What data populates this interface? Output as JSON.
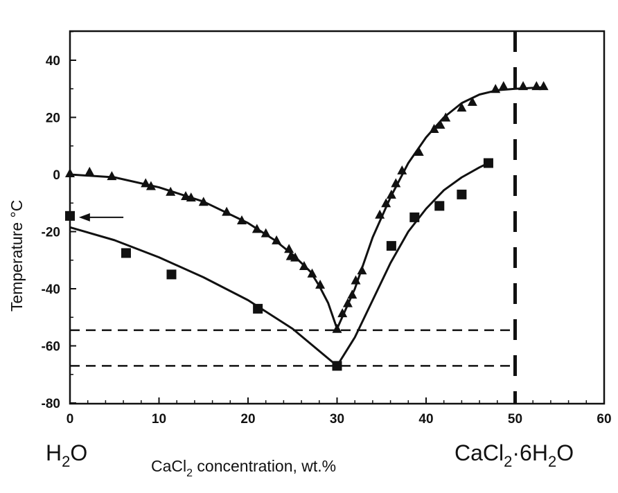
{
  "chart_data": {
    "type": "scatter",
    "title": "",
    "xlabel": {
      "main": "CaCl",
      "sub": "2",
      "rest": " concentration, wt.%"
    },
    "ylabel": "Temperature  °C",
    "xlim": [
      0,
      60
    ],
    "ylim": [
      -80,
      50
    ],
    "xticks": [
      "0",
      "10",
      "20",
      "30",
      "40",
      "50",
      "60"
    ],
    "yticks": [
      "-80",
      "-60",
      "-40",
      "-20",
      "0",
      "20",
      "40"
    ],
    "left_end_label": {
      "main": "H",
      "sub": "2",
      "rest": "O"
    },
    "right_end_label": {
      "main": "CaCl",
      "sub": "2",
      "mid": "·6H",
      "sub2": "2",
      "rest": "O"
    },
    "series": [
      {
        "name": "triangles",
        "marker": "triangle",
        "points": [
          [
            0,
            0.5
          ],
          [
            2.2,
            1
          ],
          [
            4.7,
            -0.5
          ],
          [
            8.5,
            -3
          ],
          [
            9.1,
            -4
          ],
          [
            11.3,
            -6
          ],
          [
            13,
            -7.5
          ],
          [
            13.6,
            -8
          ],
          [
            15,
            -9.5
          ],
          [
            17.6,
            -13
          ],
          [
            19.3,
            -16
          ],
          [
            21,
            -19
          ],
          [
            22,
            -20.5
          ],
          [
            23.2,
            -23
          ],
          [
            24.6,
            -26
          ],
          [
            24.8,
            -28.5
          ],
          [
            25.3,
            -29
          ],
          [
            26.3,
            -32
          ],
          [
            27.2,
            -34.6
          ],
          [
            28.1,
            -38.5
          ],
          [
            30,
            -54
          ],
          [
            30.6,
            -48.5
          ],
          [
            31.2,
            -45
          ],
          [
            31.7,
            -42
          ],
          [
            32.1,
            -37
          ],
          [
            32.8,
            -33.5
          ],
          [
            34.8,
            -14
          ],
          [
            35.5,
            -10
          ],
          [
            36.1,
            -7
          ],
          [
            36.6,
            -3
          ],
          [
            37.3,
            1.5
          ],
          [
            39.2,
            8
          ],
          [
            40.9,
            16
          ],
          [
            41.6,
            17.5
          ],
          [
            42.2,
            20
          ],
          [
            44,
            23.5
          ],
          [
            45.2,
            25.5
          ],
          [
            47.8,
            30
          ],
          [
            48.7,
            31
          ],
          [
            50.9,
            31
          ],
          [
            52.4,
            31
          ],
          [
            53.2,
            31
          ]
        ]
      },
      {
        "name": "squares",
        "marker": "square",
        "points": [
          [
            0,
            -14.5
          ],
          [
            6.3,
            -27.5
          ],
          [
            11.4,
            -35
          ],
          [
            21.1,
            -47
          ],
          [
            30,
            -67
          ],
          [
            36.1,
            -25
          ],
          [
            38.7,
            -15
          ],
          [
            41.5,
            -11
          ],
          [
            44,
            -7
          ],
          [
            47,
            4
          ]
        ]
      }
    ],
    "fit_lines": [
      {
        "name": "upper-left-curve",
        "points": [
          [
            0,
            0
          ],
          [
            5,
            -1
          ],
          [
            10,
            -4.5
          ],
          [
            15,
            -9.5
          ],
          [
            20,
            -17
          ],
          [
            23,
            -23
          ],
          [
            25,
            -28
          ],
          [
            27,
            -34
          ],
          [
            28,
            -39
          ],
          [
            29,
            -45
          ],
          [
            30,
            -54
          ]
        ]
      },
      {
        "name": "upper-right-curve",
        "points": [
          [
            30,
            -54
          ],
          [
            31,
            -47
          ],
          [
            32,
            -40
          ],
          [
            33,
            -31
          ],
          [
            34,
            -22
          ],
          [
            35,
            -15
          ],
          [
            36,
            -8
          ],
          [
            37,
            -2
          ],
          [
            38,
            4
          ],
          [
            40,
            13
          ],
          [
            42,
            20
          ],
          [
            44,
            25
          ],
          [
            46,
            28
          ],
          [
            48,
            29.5
          ],
          [
            50,
            30
          ],
          [
            53,
            30.5
          ]
        ]
      },
      {
        "name": "lower-left-curve",
        "points": [
          [
            0,
            -18.5
          ],
          [
            5,
            -23
          ],
          [
            10,
            -29
          ],
          [
            15,
            -36
          ],
          [
            20,
            -44
          ],
          [
            25,
            -54
          ],
          [
            30,
            -67
          ]
        ]
      },
      {
        "name": "lower-right-curve",
        "points": [
          [
            30,
            -67
          ],
          [
            32,
            -57
          ],
          [
            34,
            -44
          ],
          [
            36,
            -31
          ],
          [
            38,
            -20
          ],
          [
            40,
            -12
          ],
          [
            42,
            -5.5
          ],
          [
            44,
            -1
          ],
          [
            46,
            2.5
          ],
          [
            47,
            4
          ]
        ]
      }
    ],
    "reference_lines": [
      {
        "name": "eutectic-upper-dashed",
        "orientation": "horizontal",
        "value": -54.5,
        "from": 0,
        "to": 49.5
      },
      {
        "name": "eutectic-lower-dashed",
        "orientation": "horizontal",
        "value": -67,
        "from": 0,
        "to": 49.5
      },
      {
        "name": "hexahydrate-dashed",
        "orientation": "vertical",
        "value": 50
      }
    ],
    "annotations": [
      {
        "name": "arrow",
        "from": [
          6,
          -15
        ],
        "to": [
          1,
          -15
        ]
      }
    ],
    "grid": false,
    "legend": "none"
  }
}
